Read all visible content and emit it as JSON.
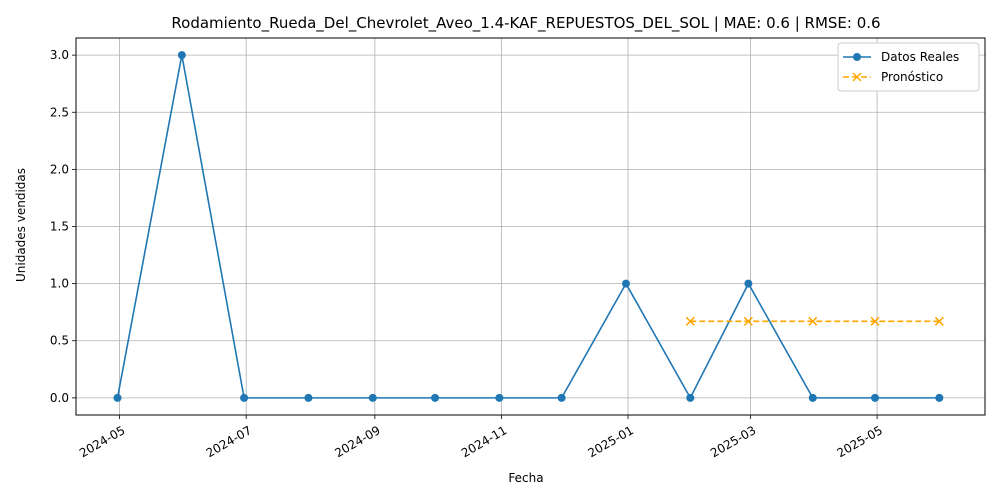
{
  "chart_data": {
    "type": "line",
    "title": "Rodamiento_Rueda_Del_Chevrolet_Aveo_1.4-KAF_REPUESTOS_DEL_SOL | MAE: 0.6 | RMSE: 0.6",
    "xlabel": "Fecha",
    "ylabel": "Unidades vendidas",
    "ylim": [
      -0.15,
      3.15
    ],
    "xlim": [
      "2024-04-10",
      "2025-06-22"
    ],
    "x_ticks": [
      "2024-05",
      "2024-07",
      "2024-09",
      "2024-11",
      "2025-01",
      "2025-03",
      "2025-05"
    ],
    "y_ticks": [
      "0.0",
      "0.5",
      "1.0",
      "1.5",
      "2.0",
      "2.5",
      "3.0"
    ],
    "grid": true,
    "legend_position": "top-right",
    "series": [
      {
        "name": "Datos Reales",
        "color": "#1f77b4",
        "style": "solid",
        "marker": "circle",
        "x": [
          "2024-04-30",
          "2024-05-31",
          "2024-06-30",
          "2024-07-31",
          "2024-08-31",
          "2024-09-30",
          "2024-10-31",
          "2024-11-30",
          "2024-12-31",
          "2025-01-31",
          "2025-02-28",
          "2025-03-31",
          "2025-04-30",
          "2025-05-31"
        ],
        "values": [
          0,
          3,
          0,
          0,
          0,
          0,
          0,
          0,
          1,
          0,
          1,
          0,
          0,
          0
        ]
      },
      {
        "name": "Pronóstico",
        "color": "#ffa500",
        "style": "dashed",
        "marker": "x",
        "x": [
          "2025-01-31",
          "2025-02-28",
          "2025-03-31",
          "2025-04-30",
          "2025-05-31"
        ],
        "values": [
          0.67,
          0.67,
          0.67,
          0.67,
          0.67
        ]
      }
    ]
  }
}
